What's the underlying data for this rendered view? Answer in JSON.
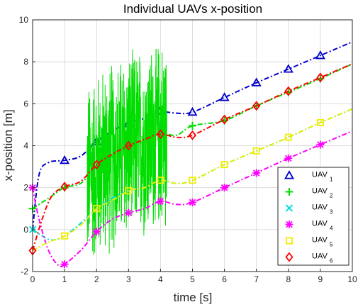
{
  "chart_data": {
    "type": "line",
    "title": "Individual UAVs x-position",
    "xlabel": "time [s]",
    "ylabel": "x-position [m]",
    "xlim": [
      0,
      10
    ],
    "ylim": [
      -2,
      10
    ],
    "xticks": [
      0,
      1,
      2,
      3,
      4,
      5,
      6,
      7,
      8,
      9,
      10
    ],
    "yticks": [
      -2,
      0,
      2,
      4,
      6,
      8,
      10
    ],
    "grid": true,
    "legend_position": "bottom-right",
    "series": [
      {
        "name": "UAV",
        "subscript": "1",
        "color": "#0000cc",
        "marker": "triangle",
        "x": [
          0,
          0.2,
          0.5,
          1,
          1.5,
          2,
          2.5,
          3,
          3.5,
          4,
          4.5,
          5,
          6,
          7,
          8,
          9,
          10
        ],
        "y": [
          0,
          2.6,
          3.2,
          3.3,
          3.5,
          4.2,
          4.7,
          5.1,
          5.3,
          5.6,
          5.55,
          5.6,
          6.3,
          7.0,
          7.65,
          8.3,
          8.95
        ],
        "marker_x": [
          1,
          2,
          3,
          4,
          5,
          6,
          7,
          8,
          9
        ],
        "marker_y": [
          3.3,
          4.2,
          5.05,
          5.65,
          5.6,
          6.3,
          7.0,
          7.65,
          8.3
        ]
      },
      {
        "name": "UAV",
        "subscript": "2",
        "color": "#00dd00",
        "marker": "plus",
        "x": [
          0,
          0.5,
          1,
          1.5,
          2,
          2.5,
          3,
          3.5,
          4,
          4.5,
          5,
          6,
          7,
          8,
          9,
          10
        ],
        "y": [
          1,
          1.5,
          2.0,
          2.2,
          3.0,
          3.5,
          4.0,
          4.2,
          4.6,
          4.5,
          4.95,
          5.2,
          5.9,
          6.55,
          7.2,
          7.9
        ],
        "noise_range": [
          1.7,
          4.2
        ],
        "noise_min": -1.4,
        "noise_max": 8.6,
        "marker_x": [
          0,
          1,
          5,
          6,
          7,
          8,
          9
        ],
        "marker_y": [
          1,
          2.0,
          4.95,
          5.2,
          5.9,
          6.55,
          7.2
        ]
      },
      {
        "name": "UAV",
        "subscript": "3",
        "color": "#00dddd",
        "marker": "x",
        "x": [
          0,
          0.3,
          0.6,
          1,
          1.5,
          2,
          2.5,
          3,
          3.5,
          4,
          4.5,
          5,
          6,
          7,
          8,
          9,
          10
        ],
        "y": [
          0,
          -0.3,
          -0.5,
          -0.3,
          0.3,
          1.0,
          1.5,
          1.85,
          2.0,
          2.35,
          2.2,
          2.35,
          3.1,
          3.75,
          4.4,
          5.1,
          5.75
        ],
        "marker_x": [
          0
        ],
        "marker_y": [
          0
        ]
      },
      {
        "name": "UAV",
        "subscript": "4",
        "color": "#ff00ff",
        "marker": "star",
        "x": [
          0,
          0.2,
          0.5,
          0.8,
          1,
          1.5,
          2,
          2.5,
          3,
          3.5,
          4,
          4.5,
          5,
          6,
          7,
          8,
          9,
          10
        ],
        "y": [
          2,
          0.5,
          -1.0,
          -1.7,
          -1.65,
          -1.0,
          -0.1,
          0.5,
          0.8,
          1.0,
          1.35,
          1.2,
          1.3,
          2.0,
          2.7,
          3.4,
          4.05,
          4.7
        ],
        "marker_x": [
          0,
          1,
          2,
          3,
          4,
          5,
          6,
          7,
          8,
          9
        ],
        "marker_y": [
          2,
          -1.65,
          -0.1,
          0.8,
          1.35,
          1.3,
          2.0,
          2.7,
          3.4,
          4.05
        ]
      },
      {
        "name": "UAV",
        "subscript": "5",
        "color": "#eeee00",
        "marker": "square",
        "x": [
          0,
          0.5,
          1,
          1.5,
          2,
          2.5,
          3,
          3.5,
          4,
          4.5,
          5,
          6,
          7,
          8,
          9,
          10
        ],
        "y": [
          -1,
          -0.6,
          -0.3,
          0.2,
          1.0,
          1.4,
          1.85,
          2.0,
          2.35,
          2.2,
          2.35,
          3.1,
          3.75,
          4.4,
          5.1,
          5.75
        ],
        "marker_x": [
          1,
          2,
          3,
          4,
          5,
          6,
          7,
          8,
          9
        ],
        "marker_y": [
          -0.3,
          1.0,
          1.85,
          2.35,
          2.35,
          3.1,
          3.75,
          4.4,
          5.1
        ]
      },
      {
        "name": "UAV",
        "subscript": "6",
        "color": "#ff0000",
        "marker": "diamond",
        "x": [
          0,
          0.3,
          0.6,
          1,
          1.5,
          2,
          2.5,
          3,
          3.5,
          4,
          4.5,
          5,
          6,
          7,
          8,
          9,
          10
        ],
        "y": [
          -1,
          0.5,
          1.6,
          2.05,
          2.3,
          3.1,
          3.6,
          4.0,
          4.3,
          4.55,
          4.4,
          4.5,
          5.25,
          5.9,
          6.6,
          7.25,
          7.9
        ],
        "marker_x": [
          0,
          1,
          2,
          3,
          4,
          5,
          6,
          7,
          8,
          9
        ],
        "marker_y": [
          -1,
          2.05,
          3.1,
          4.0,
          4.55,
          4.5,
          5.25,
          5.9,
          6.6,
          7.25
        ]
      }
    ]
  }
}
